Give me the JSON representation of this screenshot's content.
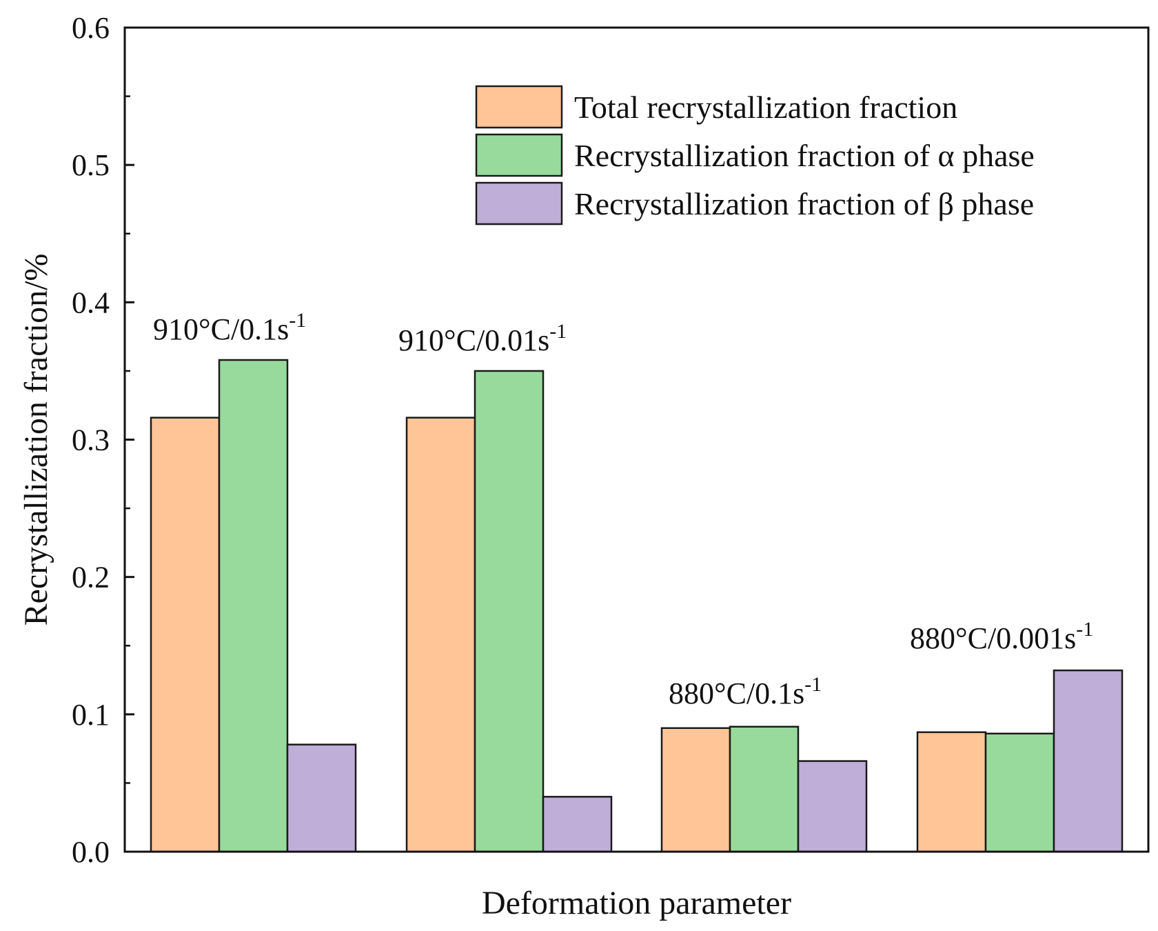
{
  "chart_data": {
    "type": "bar",
    "title": "",
    "xlabel": "Deformation parameter",
    "ylabel": "Recrystallization fraction/%",
    "ylim": [
      0,
      0.6
    ],
    "y_ticks": [
      0.0,
      0.1,
      0.2,
      0.3,
      0.4,
      0.5,
      0.6
    ],
    "y_tick_labels": [
      "0.0",
      "0.1",
      "0.2",
      "0.3",
      "0.4",
      "0.5",
      "0.6"
    ],
    "grid": false,
    "legend_position": "top-right",
    "categories": [
      {
        "base": "910°C/0.1s",
        "sup": "-1"
      },
      {
        "base": "910°C/0.01s",
        "sup": "-1"
      },
      {
        "base": "880°C/0.1s",
        "sup": "-1"
      },
      {
        "base": "880°C/0.001s",
        "sup": "-1"
      }
    ],
    "series": [
      {
        "name": "Total recrystallization fraction",
        "color": "#FFC597",
        "values": [
          0.316,
          0.316,
          0.09,
          0.087
        ]
      },
      {
        "name": "Recrystallization fraction of α phase",
        "color": "#98DA9B",
        "values": [
          0.358,
          0.35,
          0.091,
          0.086
        ]
      },
      {
        "name": "Recrystallization fraction of β phase",
        "color": "#BEAED8",
        "values": [
          0.078,
          0.04,
          0.066,
          0.132
        ]
      }
    ]
  }
}
